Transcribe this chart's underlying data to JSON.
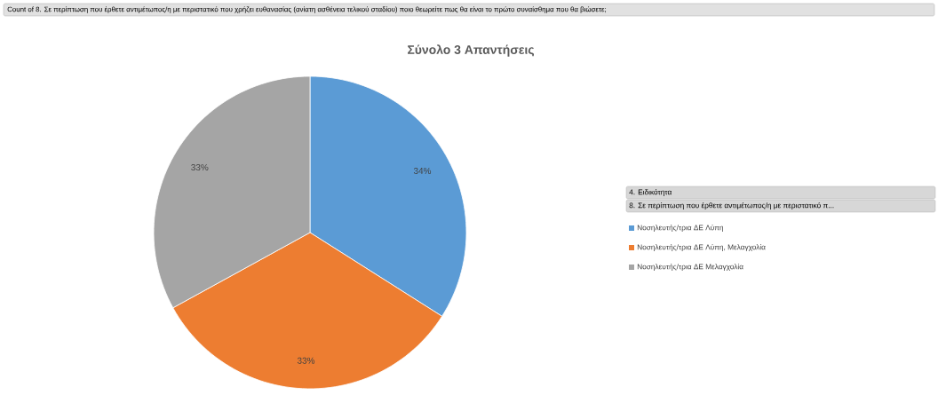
{
  "chart_data": {
    "type": "pie",
    "title": "Σύνολο 3 Απαντήσεις",
    "annotations": [
      "Count of 8. Σε περίπτωση που έρθετε αντιμέτωπος/η με περιστατικό που χρήζει ευθανασίας (ανίατη ασθένεια τελικού σταδίου) ποιο θεωρείτε πως θα είναι το πρώτο συναίσθημα που θα βιώσετε;",
      "8. Σε περίπτωση που έρθετε αντιμέτωπος/η με περιστατικό π..."
    ],
    "legend_title": "4. Ειδικότητα",
    "categories": [
      "Νοσηλευτής/τρια ΔΕ  Λύπη",
      "Νοσηλευτής/τρια ΔΕ  Λύπη, Μελαγχολία",
      "Νοσηλευτής/τρια ΔΕ  Μελαγχολία"
    ],
    "values": [
      34,
      33,
      33
    ],
    "value_labels": [
      "34%",
      "33%",
      "33%"
    ],
    "colors": [
      "#5b9bd5",
      "#ed7d31",
      "#a5a5a5"
    ],
    "legend": "right"
  }
}
